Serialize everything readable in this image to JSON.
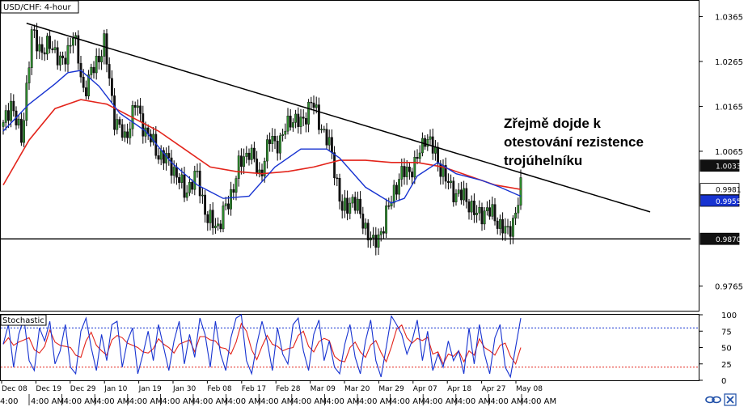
{
  "chart_data": {
    "type": "candlestick",
    "title": "USD/CHF: 4-hour",
    "price_axis": {
      "ylim": [
        0.971,
        1.04
      ],
      "ticks": [
        "1.0365",
        "1.0265",
        "1.0165",
        "1.0065",
        "0.9765"
      ],
      "tick_values": [
        1.0365,
        1.0265,
        1.0165,
        1.0065,
        0.9765
      ],
      "badges": [
        {
          "label": "1.0033",
          "value": 1.0033,
          "style": "dark"
        },
        {
          "label": "0.9981",
          "value": 0.9981,
          "style": "white"
        },
        {
          "label": "0.9955",
          "value": 0.9955,
          "style": "blue"
        },
        {
          "label": "0.9870",
          "value": 0.987,
          "style": "dark"
        }
      ]
    },
    "x_dates": [
      "Dec 08",
      "Dec 19",
      "Dec 29",
      "Jan 10",
      "Jan 19",
      "Jan 30",
      "Feb 08",
      "Feb 17",
      "Feb 28",
      "Mar 09",
      "Mar 20",
      "Mar 29",
      "Apr 07",
      "Apr 18",
      "Apr 27",
      "May 08"
    ],
    "x_times": [
      "4:00",
      "4:00 AM",
      "4:00 AM",
      "4:00 AM",
      "4:00 AM",
      "4:00 AM",
      "4:00 AM",
      "4:00 AM",
      "4:00 AM",
      "4:00 AM",
      "4:00 AM",
      "4:00 AM",
      "4:00 AM",
      "4:00 AM",
      "4:00 AM",
      "4:00 AM",
      "4:00 AM"
    ],
    "close_path": [
      [
        0,
        1.012
      ],
      [
        3,
        1.0175
      ],
      [
        7,
        1.009
      ],
      [
        11,
        1.0325
      ],
      [
        15,
        1.029
      ],
      [
        19,
        1.03
      ],
      [
        23,
        1.0255
      ],
      [
        27,
        1.033
      ],
      [
        31,
        1.02
      ],
      [
        35,
        1.025
      ],
      [
        39,
        1.0305
      ],
      [
        43,
        1.014
      ],
      [
        47,
        1.009
      ],
      [
        51,
        1.017
      ],
      [
        55,
        1.011
      ],
      [
        60,
        1.006
      ],
      [
        65,
        1.0035
      ],
      [
        70,
        0.9975
      ],
      [
        75,
        1.001
      ],
      [
        79,
        0.991
      ],
      [
        83,
        0.99
      ],
      [
        87,
        0.995
      ],
      [
        91,
        1.003
      ],
      [
        95,
        1.007
      ],
      [
        99,
        1.001
      ],
      [
        103,
        1.009
      ],
      [
        107,
        1.0085
      ],
      [
        111,
        1.014
      ],
      [
        115,
        1.0125
      ],
      [
        119,
        1.0175
      ],
      [
        123,
        1.012
      ],
      [
        127,
        1.006
      ],
      [
        131,
        0.993
      ],
      [
        135,
        0.996
      ],
      [
        139,
        0.991
      ],
      [
        143,
        0.9855
      ],
      [
        147,
        0.99
      ],
      [
        151,
        0.998
      ],
      [
        155,
        1.002
      ],
      [
        159,
        1.003
      ],
      [
        163,
        1.01
      ],
      [
        167,
        1.006
      ],
      [
        171,
        1.0
      ],
      [
        175,
        0.997
      ],
      [
        179,
        0.996
      ],
      [
        183,
        0.992
      ],
      [
        187,
        0.9935
      ],
      [
        191,
        0.991
      ],
      [
        195,
        0.988
      ],
      [
        198,
        0.993
      ],
      [
        200,
        0.998
      ]
    ],
    "ma_fast": [
      [
        0,
        1.011
      ],
      [
        10,
        1.017
      ],
      [
        20,
        1.0215
      ],
      [
        25,
        1.024
      ],
      [
        30,
        1.0245
      ],
      [
        37,
        1.021
      ],
      [
        45,
        1.015
      ],
      [
        55,
        1.011
      ],
      [
        65,
        1.004
      ],
      [
        75,
        0.999
      ],
      [
        85,
        0.996
      ],
      [
        95,
        0.9965
      ],
      [
        105,
        1.003
      ],
      [
        115,
        1.007
      ],
      [
        125,
        1.007
      ],
      [
        130,
        1.005
      ],
      [
        140,
        0.9985
      ],
      [
        150,
        0.995
      ],
      [
        155,
        0.996
      ],
      [
        160,
        1.001
      ],
      [
        168,
        1.004
      ],
      [
        175,
        1.0015
      ],
      [
        185,
        1.0
      ],
      [
        192,
        0.9985
      ],
      [
        200,
        0.9965
      ]
    ],
    "ma_slow": [
      [
        0,
        0.999
      ],
      [
        10,
        1.009
      ],
      [
        20,
        1.016
      ],
      [
        30,
        1.018
      ],
      [
        40,
        1.017
      ],
      [
        50,
        1.014
      ],
      [
        60,
        1.011
      ],
      [
        70,
        1.007
      ],
      [
        80,
        1.003
      ],
      [
        90,
        1.002
      ],
      [
        100,
        1.0015
      ],
      [
        110,
        1.002
      ],
      [
        120,
        1.003
      ],
      [
        130,
        1.0045
      ],
      [
        140,
        1.0045
      ],
      [
        150,
        1.004
      ],
      [
        160,
        1.004
      ],
      [
        170,
        1.003
      ],
      [
        180,
        1.001
      ],
      [
        190,
        0.999
      ],
      [
        200,
        0.998
      ]
    ],
    "trendline": [
      [
        9,
        1.035
      ],
      [
        250,
        0.993
      ]
    ],
    "support_line": 0.987,
    "annotation": [
      "Zřejmě dojde k",
      "otestování rezistence",
      "trojúhelníku"
    ],
    "stochastic": {
      "label": "Stochastic",
      "ylim": [
        0,
        100
      ],
      "ticks": [
        "100",
        "75",
        "50",
        "25",
        "0"
      ],
      "tick_values": [
        100,
        75,
        50,
        25,
        0
      ],
      "levels": [
        80,
        20
      ],
      "k": [
        [
          0,
          55
        ],
        [
          2,
          85
        ],
        [
          4,
          20
        ],
        [
          6,
          70
        ],
        [
          8,
          95
        ],
        [
          10,
          30
        ],
        [
          12,
          15
        ],
        [
          14,
          80
        ],
        [
          16,
          60
        ],
        [
          18,
          90
        ],
        [
          20,
          25
        ],
        [
          22,
          45
        ],
        [
          24,
          85
        ],
        [
          26,
          20
        ],
        [
          28,
          10
        ],
        [
          30,
          75
        ],
        [
          32,
          95
        ],
        [
          34,
          50
        ],
        [
          36,
          15
        ],
        [
          38,
          70
        ],
        [
          40,
          30
        ],
        [
          42,
          85
        ],
        [
          44,
          90
        ],
        [
          46,
          20
        ],
        [
          48,
          60
        ],
        [
          50,
          80
        ],
        [
          52,
          10
        ],
        [
          54,
          40
        ],
        [
          56,
          75
        ],
        [
          58,
          30
        ],
        [
          60,
          85
        ],
        [
          62,
          50
        ],
        [
          64,
          15
        ],
        [
          66,
          60
        ],
        [
          68,
          90
        ],
        [
          70,
          25
        ],
        [
          72,
          70
        ],
        [
          74,
          35
        ],
        [
          76,
          95
        ],
        [
          78,
          70
        ],
        [
          80,
          20
        ],
        [
          82,
          90
        ],
        [
          84,
          40
        ],
        [
          86,
          15
        ],
        [
          88,
          65
        ],
        [
          90,
          95
        ],
        [
          92,
          100
        ],
        [
          94,
          30
        ],
        [
          96,
          10
        ],
        [
          98,
          55
        ],
        [
          100,
          90
        ],
        [
          102,
          60
        ],
        [
          104,
          15
        ],
        [
          106,
          80
        ],
        [
          108,
          40
        ],
        [
          110,
          25
        ],
        [
          112,
          85
        ],
        [
          114,
          95
        ],
        [
          116,
          45
        ],
        [
          118,
          15
        ],
        [
          120,
          70
        ],
        [
          122,
          92
        ],
        [
          124,
          30
        ],
        [
          126,
          60
        ],
        [
          128,
          20
        ],
        [
          130,
          10
        ],
        [
          132,
          55
        ],
        [
          134,
          85
        ],
        [
          136,
          35
        ],
        [
          138,
          10
        ],
        [
          140,
          60
        ],
        [
          142,
          92
        ],
        [
          144,
          30
        ],
        [
          146,
          5
        ],
        [
          148,
          50
        ],
        [
          150,
          98
        ],
        [
          152,
          85
        ],
        [
          154,
          70
        ],
        [
          156,
          40
        ],
        [
          158,
          60
        ],
        [
          160,
          92
        ],
        [
          162,
          30
        ],
        [
          164,
          75
        ],
        [
          166,
          15
        ],
        [
          168,
          40
        ],
        [
          170,
          20
        ],
        [
          172,
          60
        ],
        [
          174,
          30
        ],
        [
          176,
          45
        ],
        [
          178,
          10
        ],
        [
          180,
          80
        ],
        [
          182,
          25
        ],
        [
          184,
          85
        ],
        [
          186,
          40
        ],
        [
          188,
          10
        ],
        [
          190,
          65
        ],
        [
          192,
          85
        ],
        [
          194,
          20
        ],
        [
          196,
          5
        ],
        [
          198,
          50
        ],
        [
          200,
          95
        ]
      ]
    }
  },
  "footer_icons": [
    "link-icon",
    "close-icon"
  ]
}
